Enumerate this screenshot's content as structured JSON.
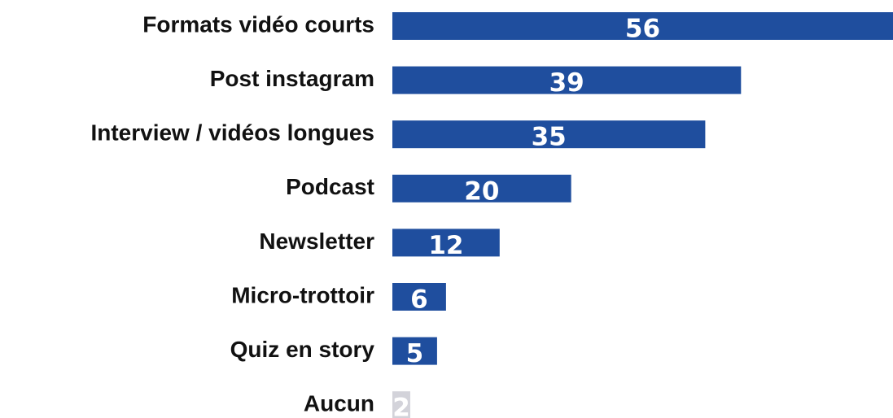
{
  "chart_data": {
    "type": "bar",
    "orientation": "horizontal",
    "categories": [
      "Formats vidéo courts",
      "Post instagram",
      "Interview / vidéos longues",
      "Podcast",
      "Newsletter",
      "Micro-trottoir",
      "Quiz en story",
      "Aucun"
    ],
    "values": [
      56,
      39,
      35,
      20,
      12,
      6,
      5,
      2
    ],
    "colors": [
      "#1f4e9e",
      "#1f4e9e",
      "#1f4e9e",
      "#1f4e9e",
      "#1f4e9e",
      "#1f4e9e",
      "#1f4e9e",
      "#d3d3da"
    ]
  }
}
